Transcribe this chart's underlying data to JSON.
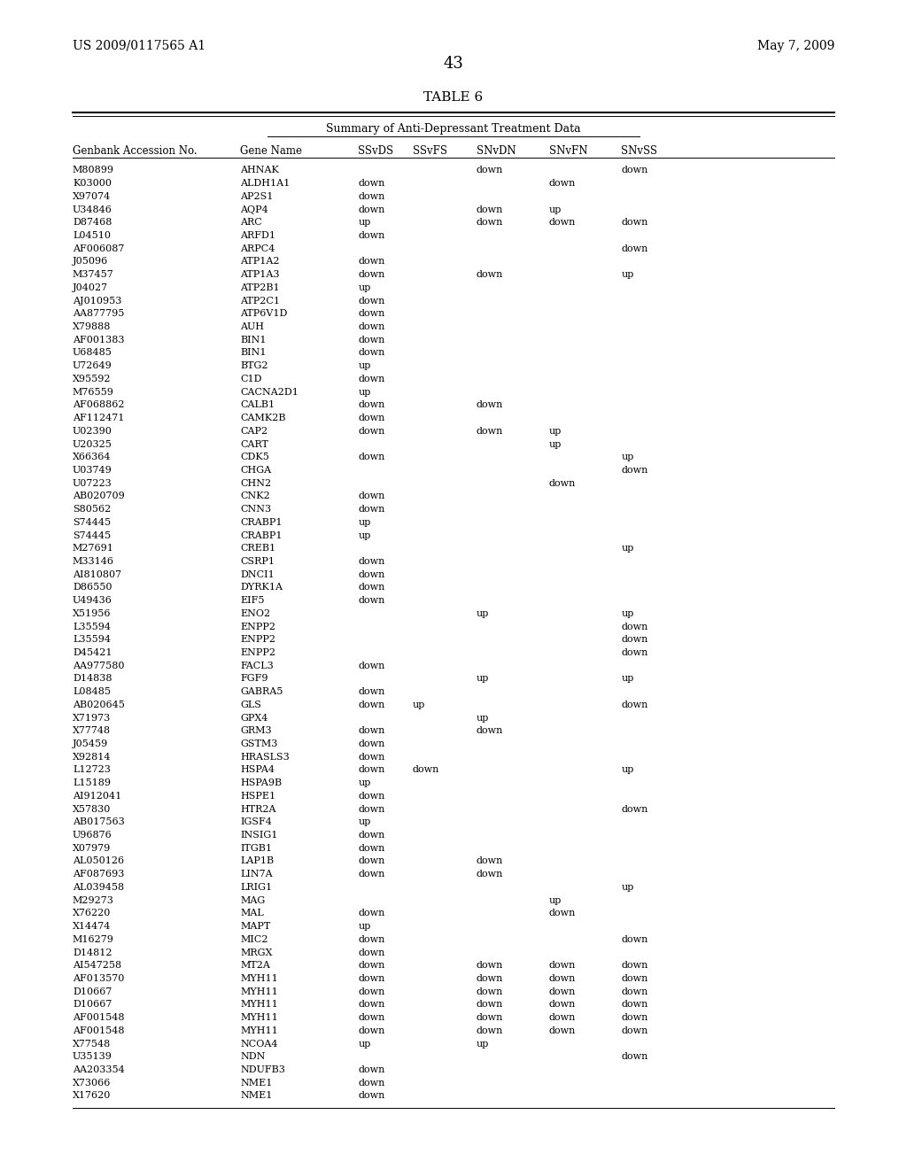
{
  "header_left": "US 2009/0117565 A1",
  "header_right": "May 7, 2009",
  "page_number": "43",
  "table_title": "TABLE 6",
  "table_subtitle": "Summary of Anti-Depressant Treatment Data",
  "col_headers": [
    "Genbank Accession No.",
    "Gene Name",
    "SSvDS",
    "SSvFS",
    "SNvDN",
    "SNvFN",
    "SNvSS"
  ],
  "rows": [
    [
      "M80899",
      "AHNAK",
      "",
      "",
      "down",
      "",
      "down"
    ],
    [
      "K03000",
      "ALDH1A1",
      "down",
      "",
      "",
      "down",
      ""
    ],
    [
      "X97074",
      "AP2S1",
      "down",
      "",
      "",
      "",
      ""
    ],
    [
      "U34846",
      "AQP4",
      "down",
      "",
      "down",
      "up",
      ""
    ],
    [
      "D87468",
      "ARC",
      "up",
      "",
      "down",
      "down",
      "down"
    ],
    [
      "L04510",
      "ARFD1",
      "down",
      "",
      "",
      "",
      ""
    ],
    [
      "AF006087",
      "ARPC4",
      "",
      "",
      "",
      "",
      "down"
    ],
    [
      "J05096",
      "ATP1A2",
      "down",
      "",
      "",
      "",
      ""
    ],
    [
      "M37457",
      "ATP1A3",
      "down",
      "",
      "down",
      "",
      "up"
    ],
    [
      "J04027",
      "ATP2B1",
      "up",
      "",
      "",
      "",
      ""
    ],
    [
      "AJ010953",
      "ATP2C1",
      "down",
      "",
      "",
      "",
      ""
    ],
    [
      "AA877795",
      "ATP6V1D",
      "down",
      "",
      "",
      "",
      ""
    ],
    [
      "X79888",
      "AUH",
      "down",
      "",
      "",
      "",
      ""
    ],
    [
      "AF001383",
      "BIN1",
      "down",
      "",
      "",
      "",
      ""
    ],
    [
      "U68485",
      "BIN1",
      "down",
      "",
      "",
      "",
      ""
    ],
    [
      "U72649",
      "BTG2",
      "up",
      "",
      "",
      "",
      ""
    ],
    [
      "X95592",
      "C1D",
      "down",
      "",
      "",
      "",
      ""
    ],
    [
      "M76559",
      "CACNA2D1",
      "up",
      "",
      "",
      "",
      ""
    ],
    [
      "AF068862",
      "CALB1",
      "down",
      "",
      "down",
      "",
      ""
    ],
    [
      "AF112471",
      "CAMK2B",
      "down",
      "",
      "",
      "",
      ""
    ],
    [
      "U02390",
      "CAP2",
      "down",
      "",
      "down",
      "up",
      ""
    ],
    [
      "U20325",
      "CART",
      "",
      "",
      "",
      "up",
      ""
    ],
    [
      "X66364",
      "CDK5",
      "down",
      "",
      "",
      "",
      "up"
    ],
    [
      "U03749",
      "CHGA",
      "",
      "",
      "",
      "",
      "down"
    ],
    [
      "U07223",
      "CHN2",
      "",
      "",
      "",
      "down",
      ""
    ],
    [
      "AB020709",
      "CNK2",
      "down",
      "",
      "",
      "",
      ""
    ],
    [
      "S80562",
      "CNN3",
      "down",
      "",
      "",
      "",
      ""
    ],
    [
      "S74445",
      "CRABP1",
      "up",
      "",
      "",
      "",
      ""
    ],
    [
      "S74445",
      "CRABP1",
      "up",
      "",
      "",
      "",
      ""
    ],
    [
      "M27691",
      "CREB1",
      "",
      "",
      "",
      "",
      "up"
    ],
    [
      "M33146",
      "CSRP1",
      "down",
      "",
      "",
      "",
      ""
    ],
    [
      "AI810807",
      "DNCI1",
      "down",
      "",
      "",
      "",
      ""
    ],
    [
      "D86550",
      "DYRK1A",
      "down",
      "",
      "",
      "",
      ""
    ],
    [
      "U49436",
      "EIF5",
      "down",
      "",
      "",
      "",
      ""
    ],
    [
      "X51956",
      "ENO2",
      "",
      "",
      "up",
      "",
      "up"
    ],
    [
      "L35594",
      "ENPP2",
      "",
      "",
      "",
      "",
      "down"
    ],
    [
      "L35594",
      "ENPP2",
      "",
      "",
      "",
      "",
      "down"
    ],
    [
      "D45421",
      "ENPP2",
      "",
      "",
      "",
      "",
      "down"
    ],
    [
      "AA977580",
      "FACL3",
      "down",
      "",
      "",
      "",
      ""
    ],
    [
      "D14838",
      "FGF9",
      "",
      "",
      "up",
      "",
      "up"
    ],
    [
      "L08485",
      "GABRA5",
      "down",
      "",
      "",
      "",
      ""
    ],
    [
      "AB020645",
      "GLS",
      "down",
      "up",
      "",
      "",
      "down"
    ],
    [
      "X71973",
      "GPX4",
      "",
      "",
      "up",
      "",
      ""
    ],
    [
      "X77748",
      "GRM3",
      "down",
      "",
      "down",
      "",
      ""
    ],
    [
      "J05459",
      "GSTM3",
      "down",
      "",
      "",
      "",
      ""
    ],
    [
      "X92814",
      "HRASLS3",
      "down",
      "",
      "",
      "",
      ""
    ],
    [
      "L12723",
      "HSPA4",
      "down",
      "down",
      "",
      "",
      "up"
    ],
    [
      "L15189",
      "HSPA9B",
      "up",
      "",
      "",
      "",
      ""
    ],
    [
      "AI912041",
      "HSPE1",
      "down",
      "",
      "",
      "",
      ""
    ],
    [
      "X57830",
      "HTR2A",
      "down",
      "",
      "",
      "",
      "down"
    ],
    [
      "AB017563",
      "IGSF4",
      "up",
      "",
      "",
      "",
      ""
    ],
    [
      "U96876",
      "INSIG1",
      "down",
      "",
      "",
      "",
      ""
    ],
    [
      "X07979",
      "ITGB1",
      "down",
      "",
      "",
      "",
      ""
    ],
    [
      "AL050126",
      "LAP1B",
      "down",
      "",
      "down",
      "",
      ""
    ],
    [
      "AF087693",
      "LIN7A",
      "down",
      "",
      "down",
      "",
      ""
    ],
    [
      "AL039458",
      "LRIG1",
      "",
      "",
      "",
      "",
      "up"
    ],
    [
      "M29273",
      "MAG",
      "",
      "",
      "",
      "up",
      ""
    ],
    [
      "X76220",
      "MAL",
      "down",
      "",
      "",
      "down",
      ""
    ],
    [
      "X14474",
      "MAPT",
      "up",
      "",
      "",
      "",
      ""
    ],
    [
      "M16279",
      "MIC2",
      "down",
      "",
      "",
      "",
      "down"
    ],
    [
      "D14812",
      "MRGX",
      "down",
      "",
      "",
      "",
      ""
    ],
    [
      "AI547258",
      "MT2A",
      "down",
      "",
      "down",
      "down",
      "down"
    ],
    [
      "AF013570",
      "MYH11",
      "down",
      "",
      "down",
      "down",
      "down"
    ],
    [
      "D10667",
      "MYH11",
      "down",
      "",
      "down",
      "down",
      "down"
    ],
    [
      "D10667",
      "MYH11",
      "down",
      "",
      "down",
      "down",
      "down"
    ],
    [
      "AF001548",
      "MYH11",
      "down",
      "",
      "down",
      "down",
      "down"
    ],
    [
      "AF001548",
      "MYH11",
      "down",
      "",
      "down",
      "down",
      "down"
    ],
    [
      "X77548",
      "NCOA4",
      "up",
      "",
      "up",
      "",
      ""
    ],
    [
      "U35139",
      "NDN",
      "",
      "",
      "",
      "",
      "down"
    ],
    [
      "AA203354",
      "NDUFB3",
      "down",
      "",
      "",
      "",
      ""
    ],
    [
      "X73066",
      "NME1",
      "down",
      "",
      "",
      "",
      ""
    ],
    [
      "X17620",
      "NME1",
      "down",
      "",
      "",
      "",
      ""
    ]
  ]
}
